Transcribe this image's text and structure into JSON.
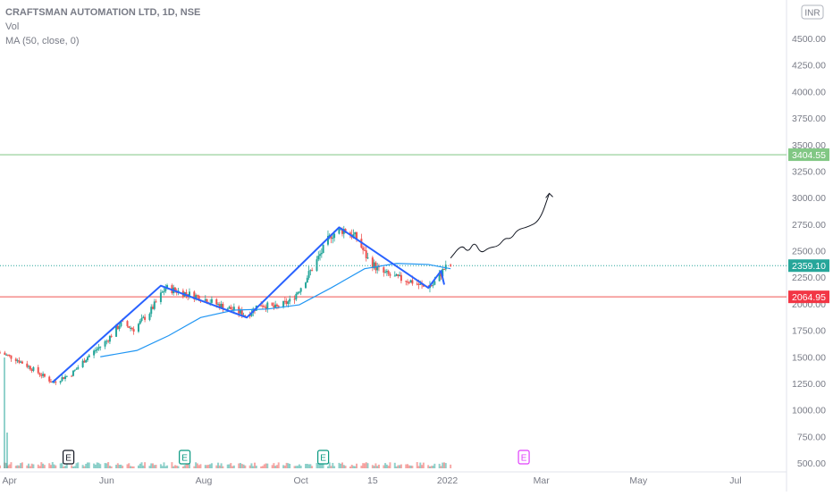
{
  "legend": {
    "symbol": "CRAFTSMAN AUTOMATION LTD, 1D, NSE",
    "volume": "Vol",
    "ma": "MA (50, close, 0)"
  },
  "currency_label": "INR",
  "chart_data": {
    "type": "line",
    "title": "",
    "ylim": [
      450,
      4700
    ],
    "y_ticks": [
      500,
      750,
      1000,
      1250,
      1500,
      1750,
      2000,
      2250,
      2500,
      2750,
      3000,
      3250,
      3500,
      3750,
      4000,
      4250,
      4500
    ],
    "y_tick_labels": [
      "500.00",
      "750.00",
      "1000.00",
      "1250.00",
      "1500.00",
      "1750.00",
      "2000.00",
      "2250.00",
      "2500.00",
      "2750.00",
      "3000.00",
      "3250.00",
      "3500.00",
      "3750.00",
      "4000.00",
      "4250.00",
      "4500.00"
    ],
    "x_ticks": [
      {
        "label": "Apr",
        "date": "2021-04-01"
      },
      {
        "label": "Jun",
        "date": "2021-06-01"
      },
      {
        "label": "Aug",
        "date": "2021-08-01"
      },
      {
        "label": "Oct",
        "date": "2021-10-01"
      },
      {
        "label": "15",
        "date": "2021-11-15"
      },
      {
        "label": "2022",
        "date": "2022-01-01"
      },
      {
        "label": "Mar",
        "date": "2022-03-01"
      },
      {
        "label": "May",
        "date": "2022-05-01"
      },
      {
        "label": "Jul",
        "date": "2022-07-01"
      }
    ],
    "x_range": [
      "2021-03-26",
      "2022-08-02"
    ],
    "price_key_points": [
      [
        "2021-03-26",
        1540
      ],
      [
        "2021-04-05",
        1480
      ],
      [
        "2021-04-15",
        1390
      ],
      [
        "2021-04-28",
        1260
      ],
      [
        "2021-05-10",
        1340
      ],
      [
        "2021-05-20",
        1500
      ],
      [
        "2021-06-01",
        1650
      ],
      [
        "2021-06-10",
        1820
      ],
      [
        "2021-06-18",
        1760
      ],
      [
        "2021-06-28",
        1920
      ],
      [
        "2021-07-08",
        2150
      ],
      [
        "2021-07-20",
        2100
      ],
      [
        "2021-07-30",
        2060
      ],
      [
        "2021-08-10",
        1990
      ],
      [
        "2021-08-20",
        1940
      ],
      [
        "2021-08-28",
        1890
      ],
      [
        "2021-09-05",
        2000
      ],
      [
        "2021-09-15",
        1960
      ],
      [
        "2021-09-25",
        2030
      ],
      [
        "2021-10-01",
        2160
      ],
      [
        "2021-10-10",
        2380
      ],
      [
        "2021-10-20",
        2650
      ],
      [
        "2021-10-28",
        2700
      ],
      [
        "2021-11-05",
        2620
      ],
      [
        "2021-11-12",
        2420
      ],
      [
        "2021-11-20",
        2300
      ],
      [
        "2021-11-30",
        2240
      ],
      [
        "2021-12-08",
        2220
      ],
      [
        "2021-12-17",
        2160
      ],
      [
        "2021-12-23",
        2180
      ],
      [
        "2021-12-30",
        2330
      ],
      [
        "2022-01-03",
        2359.1
      ]
    ],
    "ma_key_points": [
      [
        "2021-05-28",
        1500
      ],
      [
        "2021-06-20",
        1560
      ],
      [
        "2021-07-10",
        1700
      ],
      [
        "2021-07-30",
        1870
      ],
      [
        "2021-08-20",
        1940
      ],
      [
        "2021-09-10",
        1950
      ],
      [
        "2021-09-30",
        1990
      ],
      [
        "2021-10-20",
        2150
      ],
      [
        "2021-11-10",
        2330
      ],
      [
        "2021-11-30",
        2380
      ],
      [
        "2021-12-20",
        2370
      ],
      [
        "2022-01-03",
        2330
      ]
    ],
    "zigzag_drawing": [
      [
        "2021-04-28",
        1260
      ],
      [
        "2021-07-05",
        2170
      ],
      [
        "2021-08-28",
        1870
      ],
      [
        "2021-10-25",
        2720
      ],
      [
        "2021-12-20",
        2150
      ],
      [
        "2021-12-28",
        2310
      ],
      [
        "2021-12-30",
        2180
      ]
    ],
    "projection_drawing": [
      [
        "2022-01-03",
        2430
      ],
      [
        "2022-01-10",
        2560
      ],
      [
        "2022-01-14",
        2480
      ],
      [
        "2022-01-18",
        2590
      ],
      [
        "2022-01-22",
        2470
      ],
      [
        "2022-01-27",
        2530
      ],
      [
        "2022-02-02",
        2540
      ],
      [
        "2022-02-06",
        2620
      ],
      [
        "2022-02-10",
        2610
      ],
      [
        "2022-02-14",
        2700
      ],
      [
        "2022-02-20",
        2720
      ],
      [
        "2022-02-28",
        2780
      ],
      [
        "2022-03-06",
        3040
      ]
    ],
    "horizontal_levels": [
      {
        "value": 3404.55,
        "label": "3404.55",
        "color": "#81c784",
        "badge_color": "#81c784"
      },
      {
        "value": 2359.1,
        "label": "2359.10",
        "color": "#26a69a",
        "badge_color": "#26a69a",
        "dotted": true
      },
      {
        "value": 2064.95,
        "label": "2064.95",
        "color": "#ef5350",
        "badge_color": "#f23645"
      }
    ],
    "earnings_markers": [
      {
        "date": "2021-05-08",
        "label": "E",
        "color": "#131722"
      },
      {
        "date": "2021-07-20",
        "label": "E",
        "color": "#089981"
      },
      {
        "date": "2021-10-15",
        "label": "E",
        "color": "#089981"
      },
      {
        "date": "2022-02-18",
        "label": "E",
        "color": "#e040fb"
      }
    ],
    "colors": {
      "up": "#26a69a",
      "down": "#ef5350",
      "ma": "#2196f3",
      "zigzag": "#2962ff",
      "projection": "#131722",
      "axis_text": "#787b86"
    },
    "grid": false,
    "legend_position": "top-left"
  }
}
